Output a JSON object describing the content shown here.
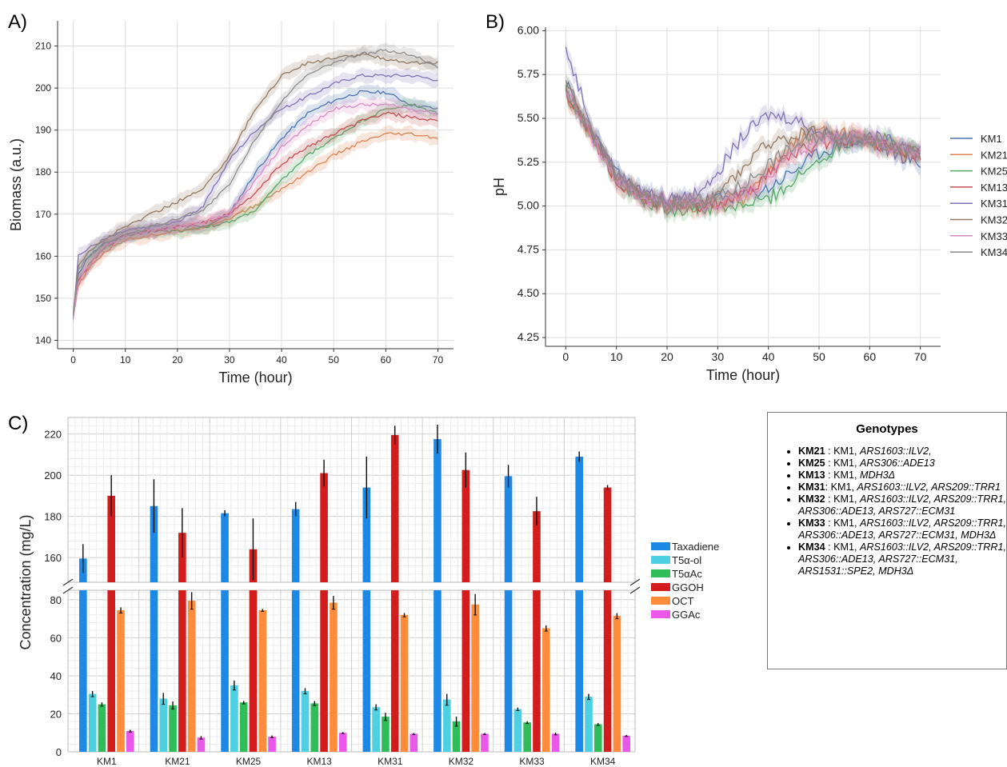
{
  "panels": {
    "a": "A)",
    "b": "B)",
    "c": "C)"
  },
  "strains": [
    "KM1",
    "KM21",
    "KM25",
    "KM13",
    "KM31",
    "KM32",
    "KM33",
    "KM34"
  ],
  "strain_colors": [
    "#4c72b0",
    "#dd8452",
    "#55a868",
    "#c44e52",
    "#8172b3",
    "#937860",
    "#da8bc3",
    "#8c8c8c"
  ],
  "legend_b_visible": [
    "KM1",
    "KM21",
    "KM25",
    "KM13",
    "KM31",
    "KM32",
    "KM33",
    "KM34"
  ],
  "chart_data": [
    {
      "id": "A",
      "type": "line",
      "xlabel": "Time (hour)",
      "ylabel": "Biomass (a.u.)",
      "xlim": [
        -3,
        73
      ],
      "ylim": [
        138,
        216
      ],
      "xticks": [
        0,
        10,
        20,
        30,
        40,
        50,
        60,
        70
      ],
      "yticks": [
        140,
        150,
        160,
        170,
        180,
        190,
        200,
        210
      ],
      "grid": true,
      "shaded_band": "standard deviation",
      "series": [
        {
          "name": "KM1",
          "x": [
            0,
            1,
            3,
            6,
            10,
            15,
            20,
            25,
            30,
            35,
            40,
            45,
            50,
            55,
            60,
            65,
            70
          ],
          "y": [
            145,
            156,
            160,
            163,
            165,
            166,
            167,
            167,
            170,
            180,
            188,
            194,
            197,
            199,
            199,
            196,
            195
          ]
        },
        {
          "name": "KM21",
          "x": [
            0,
            1,
            3,
            6,
            10,
            15,
            20,
            25,
            30,
            35,
            40,
            45,
            50,
            55,
            60,
            65,
            70
          ],
          "y": [
            146,
            153,
            157,
            161,
            164,
            165,
            166,
            167,
            169,
            172,
            176,
            180,
            184,
            187,
            189,
            189,
            188
          ]
        },
        {
          "name": "KM25",
          "x": [
            0,
            1,
            3,
            6,
            10,
            15,
            20,
            25,
            30,
            35,
            40,
            45,
            50,
            55,
            60,
            65,
            70
          ],
          "y": [
            146,
            154,
            158,
            162,
            165,
            166,
            166,
            167,
            168,
            171,
            178,
            184,
            188,
            192,
            195,
            196,
            194
          ]
        },
        {
          "name": "KM13",
          "x": [
            0,
            1,
            3,
            6,
            10,
            15,
            20,
            25,
            30,
            35,
            40,
            45,
            50,
            55,
            60,
            65,
            70
          ],
          "y": [
            146,
            154,
            158,
            162,
            165,
            166,
            167,
            168,
            170,
            175,
            182,
            186,
            189,
            192,
            194,
            193,
            192
          ]
        },
        {
          "name": "KM31",
          "x": [
            0,
            1,
            3,
            6,
            10,
            15,
            20,
            25,
            30,
            35,
            40,
            45,
            50,
            55,
            60,
            65,
            70
          ],
          "y": [
            146,
            160,
            162,
            164,
            166,
            167,
            168,
            172,
            183,
            190,
            195,
            198,
            201,
            203,
            203,
            203,
            202
          ]
        },
        {
          "name": "KM32",
          "x": [
            0,
            1,
            3,
            6,
            10,
            15,
            20,
            25,
            30,
            35,
            40,
            45,
            50,
            55,
            60,
            65,
            70
          ],
          "y": [
            146,
            158,
            161,
            164,
            167,
            170,
            173,
            176,
            184,
            195,
            203,
            206,
            207,
            208,
            207,
            206,
            206
          ]
        },
        {
          "name": "KM33",
          "x": [
            0,
            1,
            3,
            6,
            10,
            15,
            20,
            25,
            30,
            35,
            40,
            45,
            50,
            55,
            60,
            65,
            70
          ],
          "y": [
            145,
            154,
            158,
            162,
            165,
            166,
            167,
            168,
            170,
            178,
            186,
            191,
            195,
            196,
            196,
            195,
            194
          ]
        },
        {
          "name": "KM34",
          "x": [
            0,
            1,
            3,
            6,
            10,
            15,
            20,
            25,
            30,
            35,
            40,
            45,
            50,
            55,
            60,
            65,
            70
          ],
          "y": [
            146,
            157,
            160,
            163,
            165,
            167,
            169,
            171,
            177,
            188,
            197,
            203,
            206,
            208,
            209,
            208,
            205
          ]
        }
      ]
    },
    {
      "id": "B",
      "type": "line",
      "xlabel": "Time (hour)",
      "ylabel": "pH",
      "xlim": [
        -4,
        74
      ],
      "ylim": [
        4.2,
        6.02
      ],
      "xticks": [
        0,
        10,
        20,
        30,
        40,
        50,
        60,
        70
      ],
      "yticks": [
        4.25,
        4.5,
        4.75,
        5.0,
        5.25,
        5.5,
        5.75,
        6.0
      ],
      "ytick_labels": [
        "4.25",
        "4.50",
        "4.75",
        "5.00",
        "5.25",
        "5.50",
        "5.75",
        "6.00"
      ],
      "grid": true,
      "shaded_band": "standard deviation",
      "series": [
        {
          "name": "KM1",
          "x": [
            0,
            3,
            6,
            10,
            15,
            20,
            25,
            30,
            35,
            40,
            45,
            50,
            55,
            60,
            65,
            70
          ],
          "y": [
            5.7,
            5.52,
            5.38,
            5.18,
            5.08,
            5.03,
            5.02,
            5.04,
            5.06,
            5.1,
            5.2,
            5.3,
            5.36,
            5.36,
            5.3,
            5.24
          ]
        },
        {
          "name": "KM21",
          "x": [
            0,
            3,
            6,
            10,
            15,
            20,
            25,
            30,
            35,
            40,
            45,
            50,
            55,
            60,
            65,
            70
          ],
          "y": [
            5.65,
            5.5,
            5.36,
            5.16,
            5.06,
            5.0,
            5.0,
            5.02,
            5.05,
            5.2,
            5.35,
            5.42,
            5.42,
            5.36,
            5.32,
            5.29
          ]
        },
        {
          "name": "KM25",
          "x": [
            0,
            3,
            6,
            10,
            15,
            20,
            25,
            30,
            35,
            40,
            45,
            50,
            55,
            60,
            65,
            70
          ],
          "y": [
            5.66,
            5.5,
            5.37,
            5.15,
            5.04,
            4.98,
            4.98,
            4.98,
            5.0,
            5.04,
            5.14,
            5.26,
            5.36,
            5.4,
            5.36,
            5.3
          ]
        },
        {
          "name": "KM13",
          "x": [
            0,
            3,
            6,
            10,
            15,
            20,
            25,
            30,
            35,
            40,
            45,
            50,
            55,
            60,
            65,
            70
          ],
          "y": [
            5.65,
            5.5,
            5.36,
            5.15,
            5.05,
            5.0,
            5.0,
            5.02,
            5.06,
            5.18,
            5.3,
            5.36,
            5.38,
            5.36,
            5.32,
            5.3
          ]
        },
        {
          "name": "KM31",
          "x": [
            0,
            3,
            6,
            10,
            15,
            20,
            25,
            30,
            35,
            40,
            45,
            50,
            55,
            60,
            65,
            70
          ],
          "y": [
            5.9,
            5.65,
            5.4,
            5.18,
            5.08,
            5.03,
            5.06,
            5.2,
            5.4,
            5.52,
            5.5,
            5.42,
            5.4,
            5.4,
            5.36,
            5.33
          ]
        },
        {
          "name": "KM32",
          "x": [
            0,
            3,
            6,
            10,
            15,
            20,
            25,
            30,
            35,
            40,
            45,
            50,
            55,
            60,
            65,
            70
          ],
          "y": [
            5.72,
            5.52,
            5.38,
            5.16,
            5.05,
            5.0,
            5.02,
            5.06,
            5.22,
            5.36,
            5.4,
            5.42,
            5.4,
            5.38,
            5.34,
            5.3
          ]
        },
        {
          "name": "KM33",
          "x": [
            0,
            3,
            6,
            10,
            15,
            20,
            25,
            30,
            35,
            40,
            45,
            50,
            55,
            60,
            65,
            70
          ],
          "y": [
            5.66,
            5.5,
            5.36,
            5.15,
            5.05,
            5.0,
            5.0,
            5.02,
            5.06,
            5.16,
            5.3,
            5.38,
            5.4,
            5.38,
            5.34,
            5.3
          ]
        },
        {
          "name": "KM34",
          "x": [
            0,
            3,
            6,
            10,
            15,
            20,
            25,
            30,
            35,
            40,
            45,
            50,
            55,
            60,
            65,
            70
          ],
          "y": [
            5.68,
            5.52,
            5.38,
            5.17,
            5.06,
            5.01,
            5.02,
            5.05,
            5.12,
            5.24,
            5.34,
            5.4,
            5.4,
            5.38,
            5.33,
            5.3
          ]
        }
      ]
    },
    {
      "id": "C",
      "type": "bar",
      "ylabel": "Concentration (mg/L)",
      "categories": [
        "KM1",
        "KM21",
        "KM25",
        "KM13",
        "KM31",
        "KM32",
        "KM33",
        "KM34"
      ],
      "broken_y_axis": true,
      "ylim_lower": [
        0,
        85
      ],
      "ylim_upper": [
        148,
        228
      ],
      "yticks_lower": [
        0,
        20,
        40,
        60,
        80
      ],
      "yticks_upper": [
        160,
        180,
        200,
        220
      ],
      "grid": true,
      "legend_position": "right",
      "series": [
        {
          "name": "Taxadiene",
          "color": "#1e88e5",
          "values": [
            159.5,
            185,
            181.5,
            183.5,
            194,
            217.5,
            199.5,
            209
          ],
          "errors": [
            7,
            13,
            1.5,
            3.5,
            15,
            7,
            5.5,
            2.5
          ]
        },
        {
          "name": "T5α-ol",
          "color": "#4dd0e1",
          "values": [
            30.5,
            28,
            35,
            32,
            23.5,
            27.5,
            22.5,
            29
          ],
          "errors": [
            1.5,
            3,
            2.5,
            1.5,
            1.5,
            3,
            0.8,
            1.5
          ]
        },
        {
          "name": "T5αAc",
          "color": "#2ebd59",
          "values": [
            25,
            24.5,
            26,
            25.5,
            18.5,
            16,
            15.5,
            14.5
          ],
          "errors": [
            1,
            2,
            0.8,
            1.2,
            2,
            2.5,
            0.6,
            0.6
          ]
        },
        {
          "name": "GGOH",
          "color": "#d31d1d",
          "values": [
            190,
            172,
            164,
            201,
            219.5,
            202.5,
            182.5,
            194
          ],
          "errors": [
            10,
            12,
            15,
            6.5,
            4.5,
            8.5,
            7,
            1.2
          ]
        },
        {
          "name": "OCT",
          "color": "#ff8c3a",
          "values": [
            74.5,
            79.5,
            74.5,
            78.5,
            72,
            77.5,
            65,
            71.5
          ],
          "errors": [
            1.5,
            4.5,
            0.6,
            3.5,
            1,
            5.5,
            1.5,
            1.5
          ]
        },
        {
          "name": "GGAc",
          "color": "#e958e9",
          "values": [
            11,
            7.5,
            8,
            10,
            9.5,
            9.5,
            9.5,
            8.5
          ],
          "errors": [
            0.6,
            0.8,
            0.6,
            0.4,
            0.4,
            0.4,
            0.6,
            0.4
          ]
        }
      ]
    }
  ],
  "genotypes": {
    "title": "Genotypes",
    "items": [
      {
        "strain": "KM21",
        "sep": " : ",
        "base": "KM1, ",
        "mods": "ARS1603::ILV2,"
      },
      {
        "strain": "KM25",
        "sep": " : ",
        "base": "KM1, ",
        "mods": "ARS306::ADE13"
      },
      {
        "strain": "KM13",
        "sep": " : ",
        "base": "KM1, ",
        "mods": "MDH3Δ"
      },
      {
        "strain": "KM31",
        "sep": ": ",
        "base": "KM1, ",
        "mods": "ARS1603::ILV2, ARS209::TRR1"
      },
      {
        "strain": "KM32",
        "sep": " : ",
        "base": "KM1, ",
        "mods": "ARS1603::ILV2, ARS209::TRR1, ARS306::ADE13, ARS727::ECM31"
      },
      {
        "strain": "KM33",
        "sep": " : ",
        "base": "KM1, ",
        "mods": "ARS1603::ILV2, ARS209::TRR1, ARS306::ADE13, ARS727::ECM31, MDH3Δ"
      },
      {
        "strain": "KM34",
        "sep": " : ",
        "base": "KM1, ",
        "mods": "ARS1603::ILV2, ARS209::TRR1, ARS306::ADE13, ARS727::ECM31, ARS1531::SPE2, MDH3Δ"
      }
    ]
  }
}
